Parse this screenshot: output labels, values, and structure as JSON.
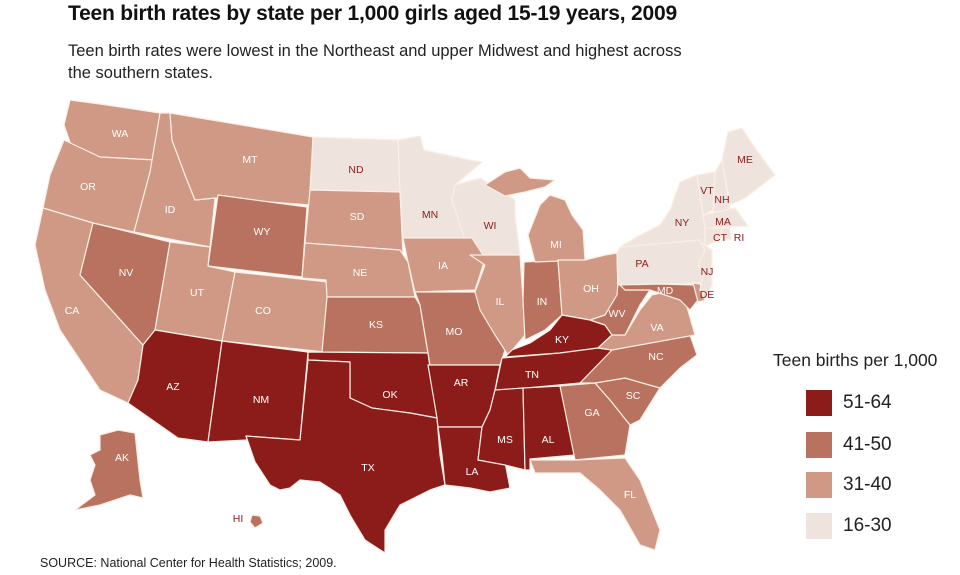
{
  "title": "Teen birth rates by state per 1,000 girls aged 15-19 years, 2009",
  "subtitle": "Teen birth rates were lowest in the Northeast and upper Midwest and highest across the southern states.",
  "source": "SOURCE: National Center for Health Statistics; 2009.",
  "legend": {
    "title": "Teen births per 1,000",
    "bins": [
      {
        "label": "51-64",
        "color": "#8c1c1a"
      },
      {
        "label": "41-50",
        "color": "#b8725f"
      },
      {
        "label": "31-40",
        "color": "#cf9985"
      },
      {
        "label": "16-30",
        "color": "#efe4dd"
      }
    ]
  },
  "states": [
    {
      "abbr": "WA",
      "bin": "31-40"
    },
    {
      "abbr": "OR",
      "bin": "31-40"
    },
    {
      "abbr": "CA",
      "bin": "31-40"
    },
    {
      "abbr": "ID",
      "bin": "31-40"
    },
    {
      "abbr": "NV",
      "bin": "41-50"
    },
    {
      "abbr": "MT",
      "bin": "31-40"
    },
    {
      "abbr": "WY",
      "bin": "41-50"
    },
    {
      "abbr": "UT",
      "bin": "31-40"
    },
    {
      "abbr": "CO",
      "bin": "31-40"
    },
    {
      "abbr": "AZ",
      "bin": "51-64"
    },
    {
      "abbr": "NM",
      "bin": "51-64"
    },
    {
      "abbr": "ND",
      "bin": "16-30"
    },
    {
      "abbr": "SD",
      "bin": "31-40"
    },
    {
      "abbr": "NE",
      "bin": "31-40"
    },
    {
      "abbr": "KS",
      "bin": "41-50"
    },
    {
      "abbr": "OK",
      "bin": "51-64"
    },
    {
      "abbr": "TX",
      "bin": "51-64"
    },
    {
      "abbr": "MN",
      "bin": "16-30"
    },
    {
      "abbr": "WI",
      "bin": "16-30"
    },
    {
      "abbr": "IA",
      "bin": "31-40"
    },
    {
      "abbr": "MO",
      "bin": "41-50"
    },
    {
      "abbr": "IL",
      "bin": "31-40"
    },
    {
      "abbr": "IN",
      "bin": "41-50"
    },
    {
      "abbr": "MI",
      "bin": "31-40"
    },
    {
      "abbr": "OH",
      "bin": "31-40"
    },
    {
      "abbr": "KY",
      "bin": "51-64"
    },
    {
      "abbr": "TN",
      "bin": "51-64"
    },
    {
      "abbr": "AR",
      "bin": "51-64"
    },
    {
      "abbr": "LA",
      "bin": "51-64"
    },
    {
      "abbr": "MS",
      "bin": "51-64"
    },
    {
      "abbr": "AL",
      "bin": "51-64"
    },
    {
      "abbr": "GA",
      "bin": "41-50"
    },
    {
      "abbr": "FL",
      "bin": "31-40"
    },
    {
      "abbr": "SC",
      "bin": "41-50"
    },
    {
      "abbr": "NC",
      "bin": "41-50"
    },
    {
      "abbr": "VA",
      "bin": "31-40"
    },
    {
      "abbr": "WV",
      "bin": "41-50"
    },
    {
      "abbr": "MD",
      "bin": "41-50"
    },
    {
      "abbr": "DE",
      "bin": "31-40"
    },
    {
      "abbr": "PA",
      "bin": "16-30"
    },
    {
      "abbr": "NJ",
      "bin": "16-30"
    },
    {
      "abbr": "NY",
      "bin": "16-30"
    },
    {
      "abbr": "VT",
      "bin": "16-30"
    },
    {
      "abbr": "NH",
      "bin": "16-30"
    },
    {
      "abbr": "MA",
      "bin": "16-30"
    },
    {
      "abbr": "CT",
      "bin": "16-30"
    },
    {
      "abbr": "RI",
      "bin": "16-30"
    },
    {
      "abbr": "ME",
      "bin": "16-30"
    },
    {
      "abbr": "AK",
      "bin": "41-50"
    },
    {
      "abbr": "HI",
      "bin": "41-50"
    }
  ]
}
